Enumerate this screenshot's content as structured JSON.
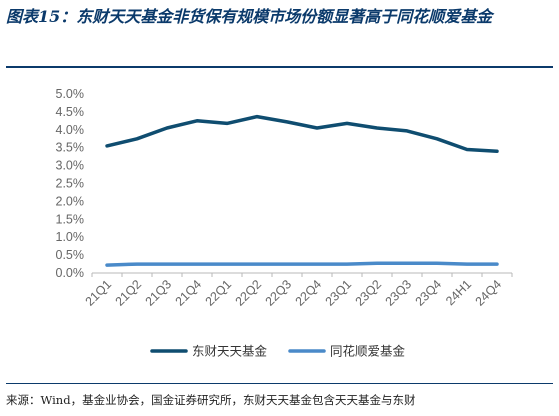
{
  "figure": {
    "title": "图表15：东财天天基金非货保有规模市场份额显著高于同花顺爱基金",
    "source": "来源：Wind，基金业协会，国金证券研究所，东财天天基金包含天天基金与东财"
  },
  "chart_data": {
    "type": "line",
    "categories": [
      "21Q1",
      "21Q2",
      "21Q3",
      "21Q4",
      "22Q1",
      "22Q2",
      "22Q3",
      "22Q4",
      "23Q1",
      "23Q2",
      "23Q3",
      "23Q4",
      "24H1",
      "24Q4"
    ],
    "ylim": [
      0,
      5.0
    ],
    "yticks": [
      "0.0%",
      "0.5%",
      "1.0%",
      "1.5%",
      "2.0%",
      "2.5%",
      "3.0%",
      "3.5%",
      "4.0%",
      "4.5%",
      "5.0%"
    ],
    "grid": false,
    "legend": "bottom",
    "series": [
      {
        "name": "东财天天基金",
        "color": "#0f4d70",
        "values": [
          3.55,
          3.75,
          4.05,
          4.25,
          4.18,
          4.37,
          4.22,
          4.05,
          4.18,
          4.05,
          3.97,
          3.75,
          3.45,
          3.4
        ]
      },
      {
        "name": "同花顺爱基金",
        "color": "#4a8ac9",
        "values": [
          0.22,
          0.25,
          0.25,
          0.25,
          0.25,
          0.25,
          0.25,
          0.25,
          0.25,
          0.27,
          0.27,
          0.27,
          0.25,
          0.25
        ]
      }
    ]
  }
}
